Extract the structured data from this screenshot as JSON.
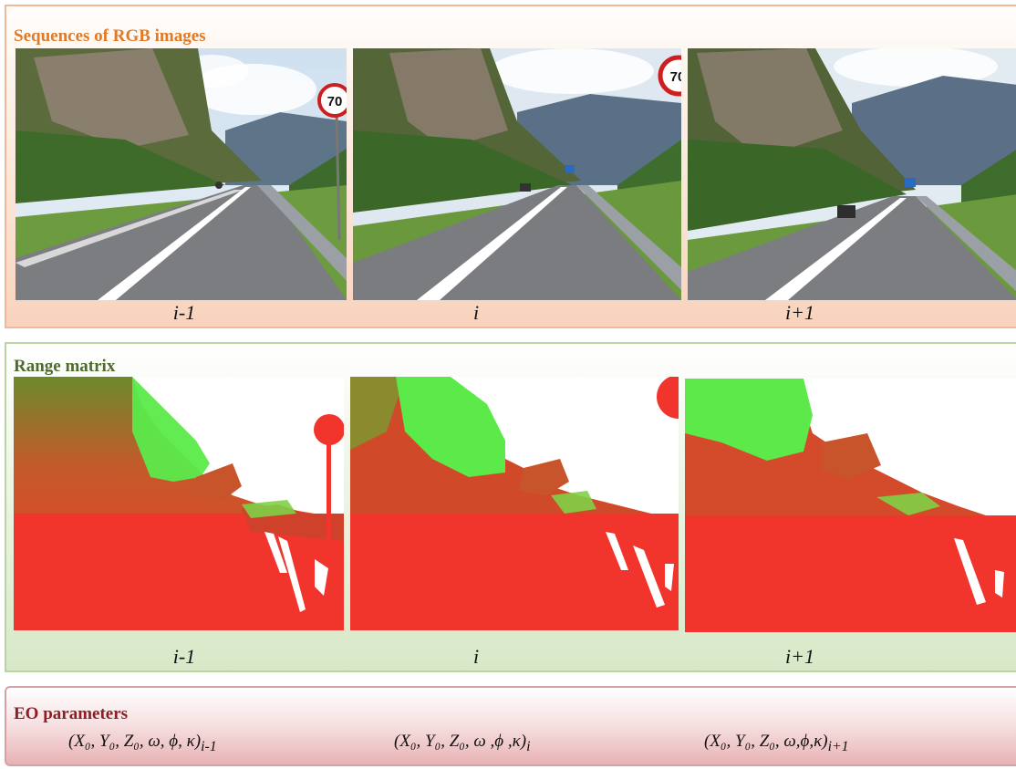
{
  "rgb_section": {
    "title": "Sequences of RGB images",
    "frames": [
      {
        "label": "i-1",
        "sign": "70"
      },
      {
        "label": "i",
        "sign": "70"
      },
      {
        "label": "i+1"
      }
    ]
  },
  "range_section": {
    "title": "Range matrix",
    "frames": [
      {
        "label": "i-1"
      },
      {
        "label": "i"
      },
      {
        "label": "i+1"
      }
    ]
  },
  "eo_section": {
    "title": "EO parameters",
    "params": [
      {
        "body": "(X₀, Y₀, Z₀, ω, ϕ, κ)",
        "subscript": "i-1"
      },
      {
        "body": "(X₀, Y₀, Z₀, ω ,ϕ ,κ)",
        "subscript": "i"
      },
      {
        "body": "(X₀, Y₀, Z₀, ω,ϕ,κ)",
        "subscript": "i+1"
      }
    ]
  },
  "colors": {
    "rgb_title": "#e07a26",
    "range_title": "#4e6a2c",
    "eo_title": "#8b1f25",
    "range_near": "#f2352c",
    "range_far": "#5bea4a"
  }
}
